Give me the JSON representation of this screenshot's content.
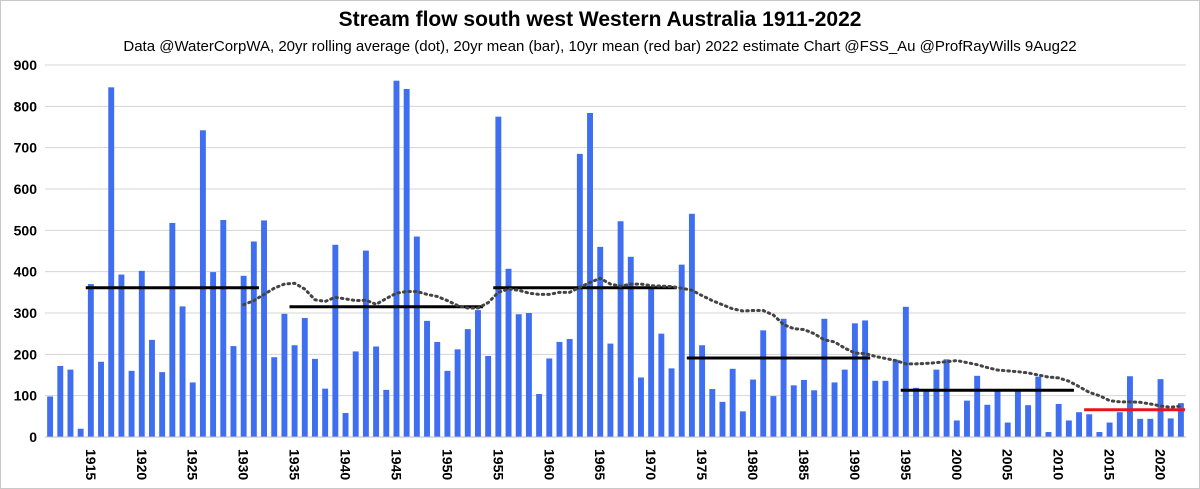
{
  "chart_data": {
    "type": "bar",
    "title": "Stream flow south west Western Australia 1911-2022",
    "subtitle": "Data @WaterCorpWA, 20yr rolling average (dot), 20yr mean (bar), 10yr mean (red bar) 2022 estimate Chart @FSS_Au @ProfRayWills 9Aug22",
    "xlabel": "",
    "ylabel": "",
    "ylim": [
      0,
      900
    ],
    "yticks": [
      0,
      100,
      200,
      300,
      400,
      500,
      600,
      700,
      800,
      900
    ],
    "xtick_labels": [
      "1915",
      "1920",
      "1925",
      "1930",
      "1935",
      "1940",
      "1945",
      "1950",
      "1955",
      "1960",
      "1965",
      "1970",
      "1975",
      "1980",
      "1985",
      "1990",
      "1995",
      "2000",
      "2005",
      "2010",
      "2015",
      "2020"
    ],
    "grid": true,
    "legend": "none",
    "colors": {
      "bars": "#3f6ff0",
      "mean20": "#000000",
      "mean10": "#e8141c",
      "rolling": "#444444"
    },
    "years": [
      1911,
      1912,
      1913,
      1914,
      1915,
      1916,
      1917,
      1918,
      1919,
      1920,
      1921,
      1922,
      1923,
      1924,
      1925,
      1926,
      1927,
      1928,
      1929,
      1930,
      1931,
      1932,
      1933,
      1934,
      1935,
      1936,
      1937,
      1938,
      1939,
      1940,
      1941,
      1942,
      1943,
      1944,
      1945,
      1946,
      1947,
      1948,
      1949,
      1950,
      1951,
      1952,
      1953,
      1954,
      1955,
      1956,
      1957,
      1958,
      1959,
      1960,
      1961,
      1962,
      1963,
      1964,
      1965,
      1966,
      1967,
      1968,
      1969,
      1970,
      1971,
      1972,
      1973,
      1974,
      1975,
      1976,
      1977,
      1978,
      1979,
      1980,
      1981,
      1982,
      1983,
      1984,
      1985,
      1986,
      1987,
      1988,
      1989,
      1990,
      1991,
      1992,
      1993,
      1994,
      1995,
      1996,
      1997,
      1998,
      1999,
      2000,
      2001,
      2002,
      2003,
      2004,
      2005,
      2006,
      2007,
      2008,
      2009,
      2010,
      2011,
      2012,
      2013,
      2014,
      2015,
      2016,
      2017,
      2018,
      2019,
      2020,
      2021,
      2022
    ],
    "values": [
      98,
      172,
      163,
      20,
      370,
      182,
      846,
      393,
      160,
      402,
      235,
      157,
      518,
      316,
      132,
      742,
      399,
      525,
      220,
      390,
      473,
      524,
      193,
      298,
      222,
      288,
      189,
      117,
      465,
      58,
      207,
      451,
      219,
      114,
      862,
      842,
      485,
      281,
      230,
      160,
      212,
      261,
      307,
      196,
      775,
      407,
      297,
      300,
      104,
      190,
      230,
      237,
      685,
      784,
      460,
      226,
      522,
      436,
      144,
      363,
      250,
      166,
      417,
      540,
      222,
      116,
      85,
      165,
      62,
      139,
      258,
      99,
      286,
      125,
      138,
      113,
      286,
      132,
      163,
      275,
      282,
      136,
      136,
      187,
      315,
      119,
      114,
      163,
      188,
      40,
      88,
      148,
      78,
      113,
      35,
      113,
      77,
      146,
      12,
      80,
      40,
      60,
      55,
      12,
      35,
      60,
      147,
      44,
      44,
      140,
      45,
      82
    ],
    "mean20": [
      {
        "x": [
          1914.5,
          1931.5
        ],
        "y": 361
      },
      {
        "x": [
          1934.5,
          1953.5
        ],
        "y": 315
      },
      {
        "x": [
          1954.5,
          1972.5
        ],
        "y": 361
      },
      {
        "x": [
          1973.5,
          1991.5
        ],
        "y": 191
      },
      {
        "x": [
          1994.5,
          2011.5
        ],
        "y": 113
      }
    ],
    "mean10": {
      "x": [
        2012.5,
        2022.4
      ],
      "y": 66
    },
    "rolling_avg": {
      "x": [
        1930,
        1931,
        1932,
        1933,
        1934,
        1935,
        1936,
        1937,
        1938,
        1939,
        1940,
        1941,
        1942,
        1943,
        1944,
        1945,
        1946,
        1947,
        1948,
        1949,
        1950,
        1951,
        1952,
        1953,
        1954,
        1955,
        1956,
        1957,
        1958,
        1959,
        1960,
        1961,
        1962,
        1963,
        1964,
        1965,
        1966,
        1967,
        1968,
        1969,
        1970,
        1971,
        1972,
        1973,
        1974,
        1975,
        1976,
        1977,
        1978,
        1979,
        1980,
        1981,
        1982,
        1983,
        1984,
        1985,
        1986,
        1987,
        1988,
        1989,
        1990,
        1991,
        1992,
        1993,
        1994,
        1995,
        1996,
        1997,
        1998,
        1999,
        2000,
        2001,
        2002,
        2003,
        2004,
        2005,
        2006,
        2007,
        2008,
        2009,
        2010,
        2011,
        2012,
        2013,
        2014,
        2015,
        2016,
        2017,
        2018,
        2019,
        2020,
        2021,
        2022
      ],
      "y": [
        320,
        330,
        345,
        360,
        370,
        372,
        358,
        332,
        328,
        338,
        334,
        330,
        331,
        321,
        335,
        348,
        352,
        352,
        345,
        340,
        330,
        318,
        312,
        312,
        325,
        350,
        358,
        355,
        348,
        345,
        345,
        350,
        350,
        362,
        374,
        384,
        370,
        365,
        370,
        370,
        366,
        365,
        364,
        360,
        355,
        342,
        330,
        320,
        310,
        305,
        306,
        306,
        295,
        272,
        262,
        260,
        250,
        235,
        230,
        215,
        203,
        202,
        195,
        190,
        185,
        177,
        177,
        178,
        180,
        182,
        185,
        180,
        175,
        168,
        162,
        160,
        158,
        155,
        150,
        145,
        143,
        135,
        122,
        108,
        100,
        88,
        85,
        85,
        84,
        80,
        75,
        72,
        75
      ]
    }
  }
}
